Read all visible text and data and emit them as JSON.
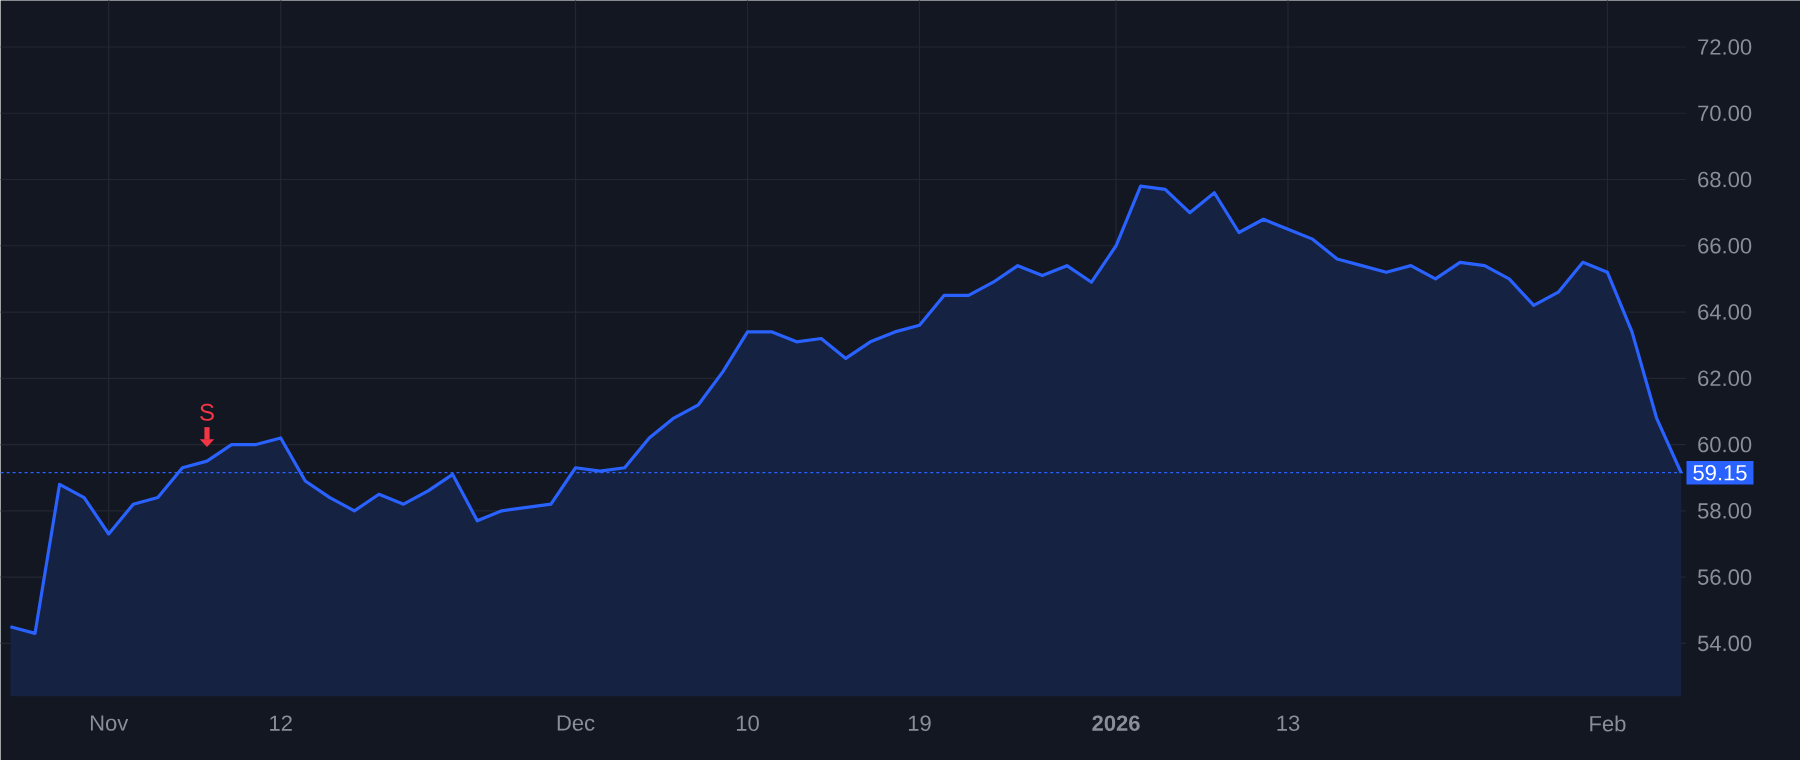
{
  "chart_data": {
    "type": "area",
    "categories": [
      null,
      null,
      null,
      null,
      "Nov",
      null,
      null,
      null,
      null,
      null,
      null,
      "12",
      null,
      null,
      null,
      null,
      null,
      null,
      null,
      null,
      null,
      null,
      null,
      "Dec",
      null,
      null,
      null,
      null,
      null,
      null,
      "10",
      null,
      null,
      null,
      null,
      null,
      null,
      "19",
      null,
      null,
      null,
      null,
      null,
      null,
      null,
      "**2026**",
      null,
      null,
      null,
      null,
      null,
      null,
      "13",
      null,
      null,
      null,
      null,
      null,
      null,
      null,
      null,
      null,
      null,
      null,
      null,
      "Feb",
      null,
      null,
      null
    ],
    "series": [
      {
        "color": "#2962ff",
        "values": [
          54.5,
          54.3,
          58.8,
          58.4,
          57.3,
          58.2,
          58.4,
          59.3,
          59.5,
          60.0,
          60.0,
          60.2,
          58.9,
          58.4,
          58.0,
          58.5,
          58.2,
          58.6,
          59.1,
          57.7,
          58.0,
          58.1,
          58.2,
          59.3,
          59.2,
          59.3,
          60.2,
          60.8,
          61.2,
          62.2,
          63.4,
          63.4,
          63.1,
          63.2,
          62.6,
          63.1,
          63.4,
          63.6,
          64.5,
          64.5,
          64.9,
          65.4,
          65.1,
          65.4,
          64.9,
          66.0,
          67.8,
          67.7,
          67.0,
          67.6,
          66.4,
          66.8,
          66.5,
          66.2,
          65.6,
          65.4,
          65.2,
          65.4,
          65.0,
          65.5,
          65.4,
          65.0,
          64.2,
          64.6,
          65.5,
          65.2,
          63.4,
          60.8,
          59.15
        ]
      }
    ],
    "ylim": [
      52.4,
      73.4
    ],
    "yticks": [
      {
        "value": 54,
        "label": "54.00"
      },
      {
        "value": 56,
        "label": "56.00"
      },
      {
        "value": 58,
        "label": "58.00"
      },
      {
        "value": 60,
        "label": "60.00"
      },
      {
        "value": 62,
        "label": "62.00"
      },
      {
        "value": 64,
        "label": "64.00"
      },
      {
        "value": 66,
        "label": "66.00"
      },
      {
        "value": 68,
        "label": "68.00"
      },
      {
        "value": 70,
        "label": "70.00"
      },
      {
        "value": 72,
        "label": "72.00"
      }
    ],
    "grid": true,
    "ref_lines": [
      {
        "axis": "y",
        "value": 59.15,
        "label": "59.15",
        "color": "#2962ff",
        "line_style": "dotted"
      }
    ],
    "annotations": [
      {
        "text": "S",
        "y": 59.5
      }
    ]
  }
}
